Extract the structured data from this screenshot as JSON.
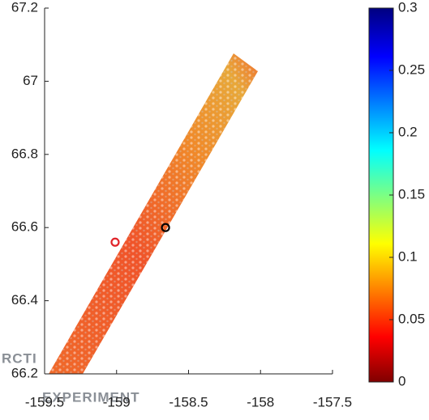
{
  "chart_data": {
    "type": "scatter",
    "xlim": [
      -159.5,
      -157.5
    ],
    "xticks": [
      -159.5,
      -159,
      -158.5,
      -158,
      -157.5
    ],
    "ylim": [
      66.2,
      67.2
    ],
    "yticks": [
      66.2,
      66.4,
      66.6,
      66.8,
      67,
      67.2
    ],
    "series": [
      {
        "color": "#e0242a",
        "x": [
          -159.01
        ],
        "values": [
          66.56
        ]
      },
      {
        "color": "#000000",
        "x": [
          -158.66
        ],
        "values": [
          66.6
        ]
      }
    ],
    "colorbar": {
      "lim": [
        0,
        0.3
      ],
      "ticks": [
        0,
        0.05,
        0.1,
        0.15,
        0.2,
        0.25,
        0.3
      ]
    },
    "watermark": [
      "RCTI",
      "EXPERIMENT"
    ]
  }
}
